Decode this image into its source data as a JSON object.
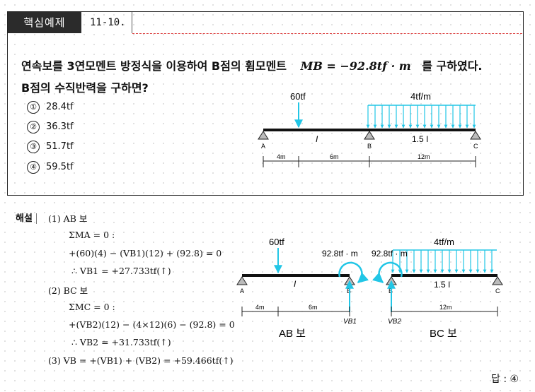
{
  "header": {
    "tag": "핵심예제",
    "number": "11-10."
  },
  "question": {
    "line1": "연속보를 3연모멘트 방정식을 이용하여 B점의 휨모멘트",
    "moment_expr": "MB = −92.8tf · m",
    "line1_end": "를 구하였다.",
    "line2": "B점의 수직반력을 구하면?"
  },
  "options": [
    {
      "num": "①",
      "text": "28.4tf"
    },
    {
      "num": "②",
      "text": "36.3tf"
    },
    {
      "num": "③",
      "text": "51.7tf"
    },
    {
      "num": "④",
      "text": "59.5tf"
    }
  ],
  "figure1": {
    "point_load": "60tf",
    "dist_load": "4tf/m",
    "span1_label": "I",
    "span2_label": "1.5 I",
    "point_A": "A",
    "point_B": "B",
    "point_C": "C",
    "dim1": "4m",
    "dim2": "6m",
    "dim3": "12m"
  },
  "solution": {
    "label": "해설",
    "s1_title": "(1)  AB 보",
    "s1_eq1": "ΣMA = 0 :",
    "s1_eq2": "+(60)(4) − (VB1)(12) + (92.8) = 0",
    "s1_eq3": "∴  VB1 = +27.733tf(↑)",
    "s2_title": "(2)  BC 보",
    "s2_eq1": "ΣMC = 0 :",
    "s2_eq2": "+(VB2)(12) − (4×12)(6) − (92.8) = 0",
    "s2_eq3": "∴  VB2 = +31.733tf(↑)",
    "s3": "(3)   VB = +(VB1) + (VB2) = +59.466tf(↑)"
  },
  "figure2": {
    "point_load": "60tf",
    "dist_load": "4tf/m",
    "moment_left": "92.8tf · m",
    "moment_right": "92.8tf · m",
    "span1_label": "I",
    "span2_label": "1.5 I",
    "point_A": "A",
    "point_B1": "B",
    "point_B2": "B",
    "point_C": "C",
    "dim1": "4m",
    "dim2": "6m",
    "dim3": "12m",
    "reaction_left": "VB1",
    "reaction_right": "VB2",
    "caption_ab": "AB 보",
    "caption_bc": "BC 보"
  },
  "answer": "답 : ④",
  "colors": {
    "load_cyan": "#22c6e6",
    "header_bg": "#2b2b2b",
    "dash_red": "#dd4444"
  }
}
